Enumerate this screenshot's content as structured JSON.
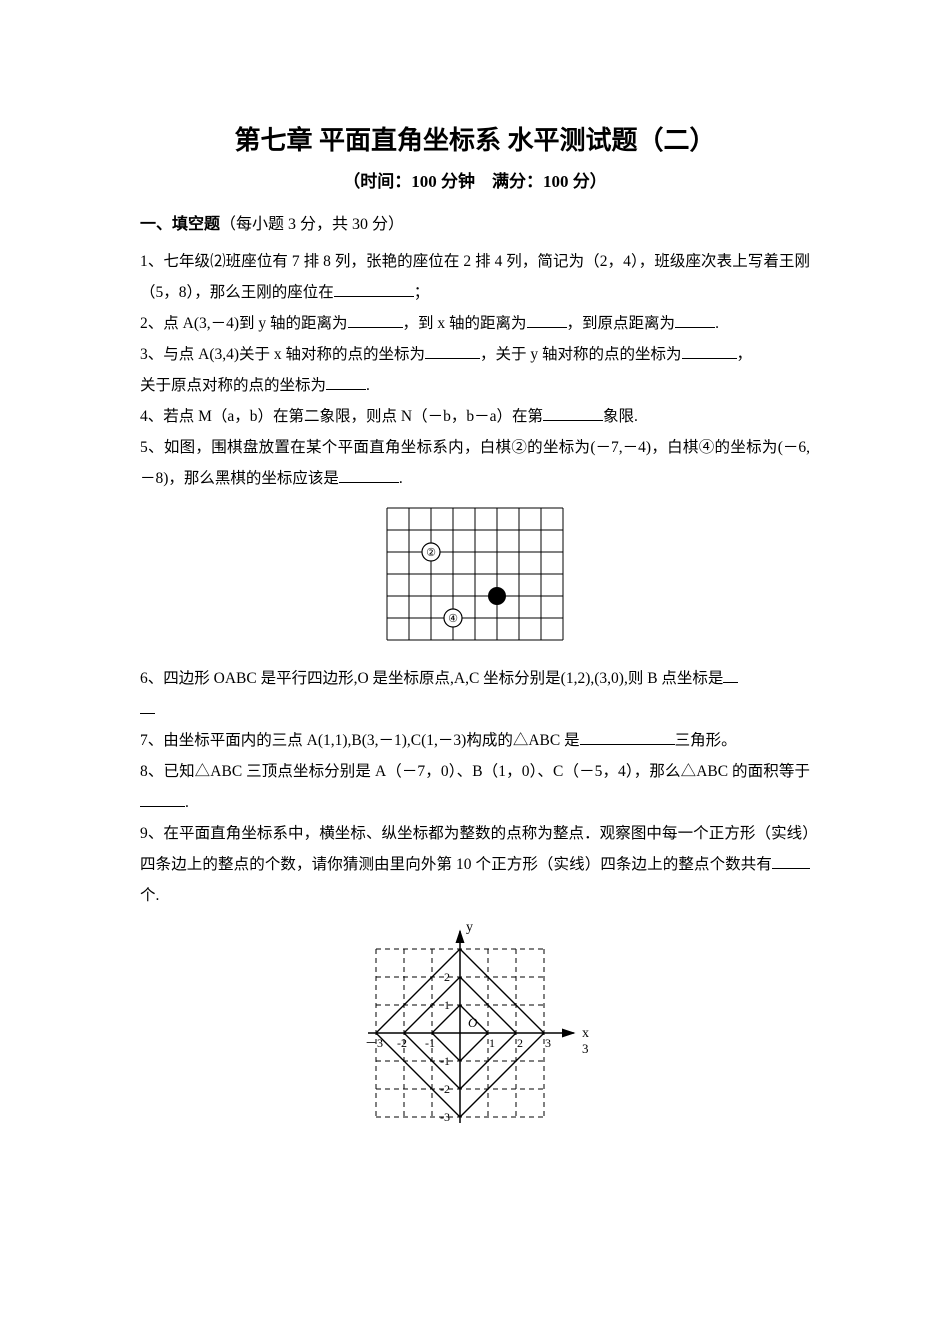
{
  "title": "第七章 平面直角坐标系 水平测试题（二）",
  "subtitle": "（时间：100 分钟　满分：100 分）",
  "section1": {
    "heading_bold": "一、填空题",
    "heading_rest": "（每小题 3 分，共 30 分）"
  },
  "q1": {
    "pre": "1、七年级⑵班座位有 7 排 8 列，张艳的座位在 2 排 4 列，简记为（2，4），班级座次表上写着王刚（5，8），那么王刚的座位在",
    "post": "；"
  },
  "q2": {
    "a": "2、点 A(3,－4)到 y 轴的距离为",
    "b": "，到 x 轴的距离为",
    "c": "，到原点距离为",
    "d": "."
  },
  "q3": {
    "a": "3、与点 A(3,4)关于 x 轴对称的点的坐标为",
    "b": "，关于 y 轴对称的点的坐标为",
    "c": "，",
    "line2a": "关于原点对称的点的坐标为",
    "line2b": "."
  },
  "q4": {
    "a": "4、若点 M（a，b）在第二象限，则点 N（－b，b－a）在第",
    "b": "象限."
  },
  "q5": {
    "a": "5、如图，围棋盘放置在某个平面直角坐标系内，白棋②的坐标为(－7,－4)，白棋④的坐标为(－6,－8)，那么黑棋的坐标应该是",
    "b": "."
  },
  "q6": {
    "a": "6、四边形 OABC 是平行四边形,O 是坐标原点,A,C 坐标分别是(1,2),(3,0),则 B 点坐标是",
    "b": ""
  },
  "q7": {
    "a": "7、由坐标平面内的三点 A(1,1),B(3,－1),C(1,－3)构成的△ABC 是",
    "b": "三角形。"
  },
  "q8": {
    "a": "8、已知△ABC 三顶点坐标分别是 A（－7，0）、B（1，0）、C（－5，4），那么△ABC 的面积等于",
    "b": "."
  },
  "q9": {
    "a": "9、在平面直角坐标系中，横坐标、纵坐标都为整数的点称为整点．观察图中每一个正方形（实线）四条边上的整点的个数，请你猜测由里向外第 10 个正方形（实线）四条边上的整点个数共有",
    "b": "个."
  },
  "go_board": {
    "cols": 8,
    "rows": 6,
    "cell": 22,
    "grid_color": "#000000",
    "bg_color": "#ffffff",
    "white_stones": [
      {
        "label": "②",
        "col": 2,
        "row": 2
      },
      {
        "label": "④",
        "col": 3,
        "row": 5
      }
    ],
    "black_stones": [
      {
        "col": 5,
        "row": 4
      }
    ]
  },
  "grid_fig": {
    "extent": 3,
    "cell": 28,
    "axis_label_x": "x",
    "axis_label_y": "y",
    "dash_color": "#000000",
    "solid_color": "#000000",
    "origin_label": "O",
    "extra_x_label": "3",
    "ticks_x": [
      "－3",
      "-2",
      "-1",
      "1",
      "2",
      "3"
    ],
    "ticks_y": [
      "-3",
      "-2",
      "-1",
      "1",
      "2"
    ],
    "diamonds": [
      1,
      2,
      3
    ]
  }
}
